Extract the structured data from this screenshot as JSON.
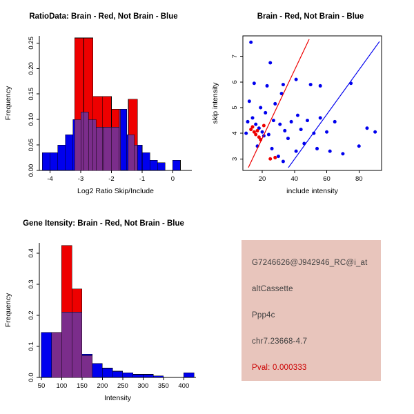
{
  "page": {
    "background": "#FFFFFF"
  },
  "chart_data": [
    {
      "id": "ratio-histogram",
      "type": "histogram-overlay",
      "title": "RatioData: Brain - Red, Not Brain - Blue",
      "xlabel": "Log2 Ratio Skip/Include",
      "ylabel": "Frequency",
      "xlim": [
        -4.35,
        0.62
      ],
      "ylim": [
        0,
        0.264
      ],
      "xticks": [
        -4,
        -3,
        -2,
        -1,
        0
      ],
      "xtick_labels": [
        "-4",
        "-3",
        "-2",
        "-1",
        "0"
      ],
      "yticks": [
        0,
        0.05,
        0.1,
        0.15,
        0.2,
        0.25
      ],
      "ytick_labels": [
        "0.00",
        "0.05",
        "0.10",
        "0.15",
        "0.20",
        "0.25"
      ],
      "grid": false,
      "legend": "none",
      "overlap_color": "#7B2D8B",
      "series": [
        {
          "name": "Not Brain",
          "color": "#0000EE",
          "bin_width": 0.25,
          "bins": [
            [
              -4.25,
              0.035
            ],
            [
              -4.0,
              0.035
            ],
            [
              -3.75,
              0.05
            ],
            [
              -3.5,
              0.07
            ],
            [
              -3.25,
              0.1
            ],
            [
              -3.0,
              0.115
            ],
            [
              -2.75,
              0.1
            ],
            [
              -2.5,
              0.085
            ],
            [
              -2.25,
              0.085
            ],
            [
              -2.0,
              0.085
            ],
            [
              -1.75,
              0.12
            ],
            [
              -1.5,
              0.07
            ],
            [
              -1.25,
              0.05
            ],
            [
              -1.0,
              0.035
            ],
            [
              -0.75,
              0.02
            ],
            [
              -0.5,
              0.015
            ],
            [
              0.0,
              0.02
            ]
          ]
        },
        {
          "name": "Brain",
          "color": "#EE0000",
          "bin_width": 0.3,
          "bins": [
            [
              -3.2,
              0.26
            ],
            [
              -2.9,
              0.26
            ],
            [
              -2.6,
              0.145
            ],
            [
              -2.3,
              0.145
            ],
            [
              -2.0,
              0.12
            ],
            [
              -1.45,
              0.14
            ]
          ]
        }
      ]
    },
    {
      "id": "intensity-scatter",
      "type": "scatter",
      "title": "Brain - Red, Not Brain - Blue",
      "xlabel": "include intensity",
      "ylabel": "skip intensity",
      "xlim": [
        8,
        94
      ],
      "ylim": [
        2.55,
        7.8
      ],
      "xticks": [
        20,
        40,
        60,
        80
      ],
      "xtick_labels": [
        "20",
        "40",
        "60",
        "80"
      ],
      "yticks": [
        3,
        4,
        5,
        6,
        7
      ],
      "ytick_labels": [
        "3",
        "4",
        "5",
        "6",
        "7"
      ],
      "grid": false,
      "legend": "none",
      "box": true,
      "series": [
        {
          "name": "Not Brain",
          "color": "#0000EE",
          "points": [
            [
              13,
              7.55
            ],
            [
              25,
              6.75
            ],
            [
              15,
              5.95
            ],
            [
              23,
              5.85
            ],
            [
              33,
              5.9
            ],
            [
              41,
              6.1
            ],
            [
              50,
              5.9
            ],
            [
              56,
              5.85
            ],
            [
              75,
              5.95
            ],
            [
              12,
              5.25
            ],
            [
              19,
              5.0
            ],
            [
              28,
              5.15
            ],
            [
              32,
              5.55
            ],
            [
              14,
              4.6
            ],
            [
              22,
              4.8
            ],
            [
              27,
              4.5
            ],
            [
              31,
              4.35
            ],
            [
              38,
              4.45
            ],
            [
              42,
              4.7
            ],
            [
              48,
              4.5
            ],
            [
              56,
              4.6
            ],
            [
              65,
              4.45
            ],
            [
              11,
              4.45
            ],
            [
              16,
              4.35
            ],
            [
              18,
              4.2
            ],
            [
              20,
              4.05
            ],
            [
              24,
              3.95
            ],
            [
              34,
              4.1
            ],
            [
              44,
              4.15
            ],
            [
              52,
              4.0
            ],
            [
              60,
              4.05
            ],
            [
              85,
              4.2
            ],
            [
              90,
              4.05
            ],
            [
              10,
              4.0
            ],
            [
              21,
              3.9
            ],
            [
              17,
              3.5
            ],
            [
              26,
              3.4
            ],
            [
              30,
              3.1
            ],
            [
              36,
              3.8
            ],
            [
              41,
              3.3
            ],
            [
              46,
              3.6
            ],
            [
              54,
              3.4
            ],
            [
              62,
              3.3
            ],
            [
              70,
              3.2
            ],
            [
              80,
              3.5
            ],
            [
              33,
              2.9
            ]
          ]
        },
        {
          "name": "Brain",
          "color": "#EE0000",
          "points": [
            [
              13,
              4.15
            ],
            [
              14,
              4.25
            ],
            [
              15,
              4.05
            ],
            [
              16,
              3.95
            ],
            [
              17,
              4.1
            ],
            [
              18,
              3.85
            ],
            [
              19,
              3.75
            ],
            [
              21,
              4.3
            ],
            [
              25,
              3.0
            ],
            [
              28,
              3.05
            ]
          ]
        }
      ],
      "fit_lines": [
        {
          "name": "brain-fit-line",
          "color": "#EE0000",
          "x1": 11.4,
          "y1": 2.66,
          "x2": 49.1,
          "y2": 7.67
        },
        {
          "name": "notbrain-fit-line",
          "color": "#0000EE",
          "x1": 36.2,
          "y1": 2.66,
          "x2": 92.7,
          "y2": 7.58
        }
      ]
    },
    {
      "id": "gene-intensity-histogram",
      "type": "histogram-overlay",
      "title": "Gene Itensity: Brain - Red, Not Brain - Blue",
      "xlabel": "Intensity",
      "ylabel": "Frequency",
      "xlim": [
        45,
        430
      ],
      "ylim": [
        0,
        0.433
      ],
      "xticks": [
        50,
        100,
        150,
        200,
        250,
        300,
        350,
        400
      ],
      "xtick_labels": [
        "50",
        "100",
        "150",
        "200",
        "250",
        "300",
        "350",
        "400"
      ],
      "yticks": [
        0,
        0.1,
        0.2,
        0.3,
        0.4
      ],
      "ytick_labels": [
        "0.0",
        "0.1",
        "0.2",
        "0.3",
        "0.4"
      ],
      "grid": false,
      "legend": "none",
      "overlap_color": "#7B2D8B",
      "series": [
        {
          "name": "Not Brain",
          "color": "#0000EE",
          "bin_width": 25,
          "bins": [
            [
              50,
              0.145
            ],
            [
              75,
              0.145
            ],
            [
              100,
              0.21
            ],
            [
              125,
              0.21
            ],
            [
              150,
              0.075
            ],
            [
              175,
              0.045
            ],
            [
              200,
              0.03
            ],
            [
              225,
              0.02
            ],
            [
              250,
              0.015
            ],
            [
              275,
              0.01
            ],
            [
              300,
              0.01
            ],
            [
              325,
              0.005
            ],
            [
              400,
              0.015
            ]
          ]
        },
        {
          "name": "Brain",
          "color": "#EE0000",
          "bin_width": 25,
          "bins": [
            [
              75,
              0.145
            ],
            [
              100,
              0.425
            ],
            [
              125,
              0.285
            ],
            [
              150,
              0.07
            ]
          ]
        }
      ]
    }
  ],
  "info_panel": {
    "background": "#E8C5BC",
    "lines": [
      {
        "text": "G7246626@J942946_RC@i_at",
        "color": "#3F3F3F"
      },
      {
        "text": "altCassette",
        "color": "#3F3F3F"
      },
      {
        "text": "Ppp4c",
        "color": "#3F3F3F"
      },
      {
        "text": "chr7.23668-4.7",
        "color": "#3F3F3F"
      },
      {
        "text": "Pval: 0.000333",
        "color": "#CC0000"
      }
    ]
  }
}
